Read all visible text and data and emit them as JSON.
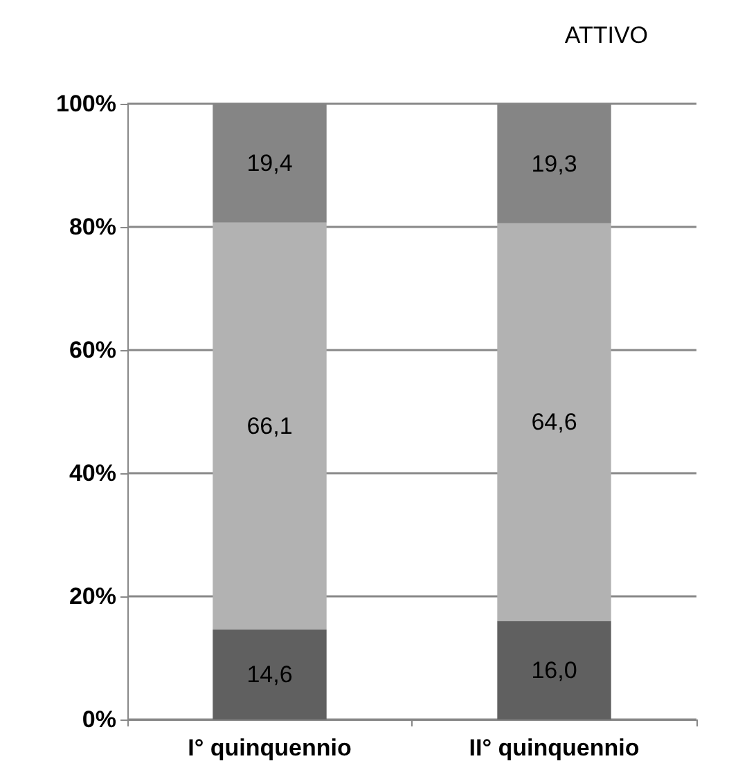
{
  "chart_data": {
    "type": "bar",
    "title": "ATTIVO",
    "stacked": true,
    "categories": [
      "I° quinquennio",
      "II° quinquennio"
    ],
    "series": [
      {
        "color": "#606060",
        "values": [
          14.6,
          16.0
        ],
        "value_labels": [
          "14,6",
          "16,0"
        ]
      },
      {
        "color": "#b2b2b2",
        "values": [
          66.1,
          64.6
        ],
        "value_labels": [
          "66,1",
          "64,6"
        ]
      },
      {
        "color": "#858585",
        "values": [
          19.4,
          19.3
        ],
        "value_labels": [
          "19,4",
          "19,3"
        ]
      }
    ],
    "ylim": [
      0,
      100
    ],
    "yticks": [
      {
        "value": 0,
        "label": "0%"
      },
      {
        "value": 20,
        "label": "20%"
      },
      {
        "value": 40,
        "label": "40%"
      },
      {
        "value": 60,
        "label": "60%"
      },
      {
        "value": 80,
        "label": "80%"
      },
      {
        "value": 100,
        "label": "100%"
      }
    ],
    "grid": "y"
  }
}
